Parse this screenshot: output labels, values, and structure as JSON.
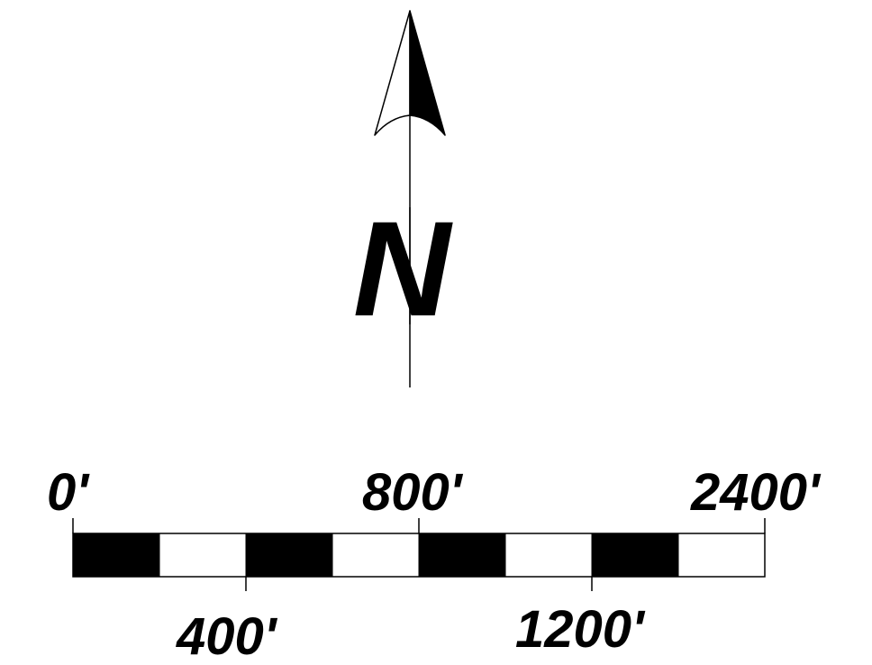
{
  "north_arrow": {
    "letter": "N",
    "icon": "north-arrow-icon"
  },
  "scale_bar": {
    "unit_symbol": "'",
    "segments": 8,
    "labels_top": [
      "0'",
      "800'",
      "2400'"
    ],
    "labels_bottom": [
      "400'",
      "1200'"
    ]
  },
  "colors": {
    "ink": "#000000",
    "background": "#ffffff"
  }
}
